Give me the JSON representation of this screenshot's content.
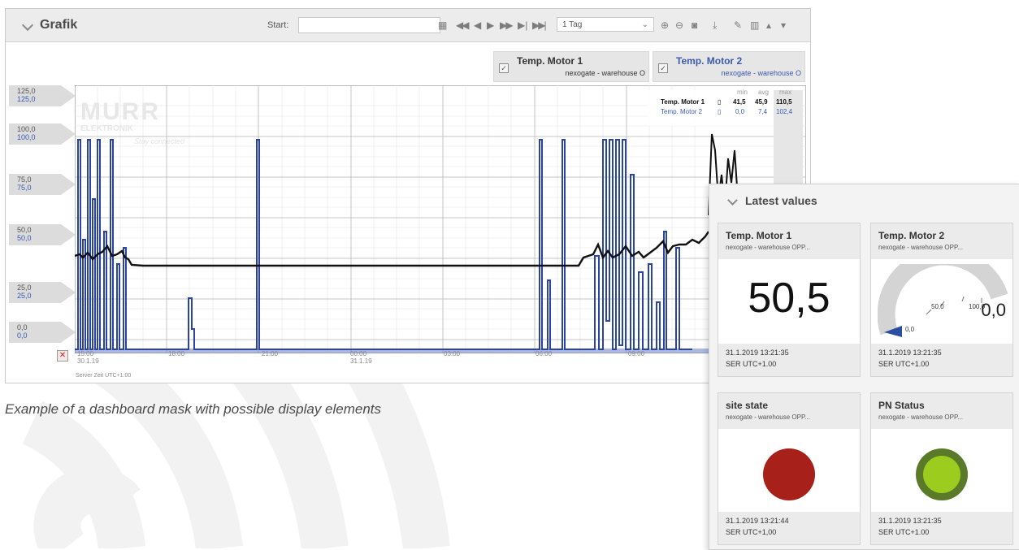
{
  "grafik": {
    "title": "Grafik",
    "start_label": "Start:",
    "start_value": "",
    "range_value": "1 Tag",
    "toolbar_icons": [
      "calendar-icon",
      "skip-back-icon",
      "step-back-icon",
      "play-icon",
      "fast-forward-icon",
      "step-forward-icon",
      "skip-forward-icon",
      "zoom-in-icon",
      "zoom-out-icon",
      "camera-icon",
      "download-icon",
      "pencil-icon",
      "trash-icon",
      "collapse-icon",
      "expand-icon"
    ],
    "series_toggles": [
      {
        "name": "Temp. Motor 1",
        "source": "nexogate - warehouse O",
        "color": "#111111"
      },
      {
        "name": "Temp. Motor 2",
        "source": "nexogate - warehouse O",
        "color": "#3b5ab0"
      }
    ],
    "y_labels": [
      {
        "a": "125,0",
        "b": "125,0"
      },
      {
        "a": "100,0",
        "b": "100,0"
      },
      {
        "a": "75,0",
        "b": "75,0"
      },
      {
        "a": "50,0",
        "b": "50,0"
      },
      {
        "a": "25,0",
        "b": "25,0"
      },
      {
        "a": "0,0",
        "b": "0,0"
      }
    ],
    "x_labels": [
      {
        "t": "15:00",
        "d": "30.1.19"
      },
      {
        "t": "18:00",
        "d": ""
      },
      {
        "t": "21:00",
        "d": ""
      },
      {
        "t": "00:00",
        "d": "31.1.19"
      },
      {
        "t": "03:00",
        "d": ""
      },
      {
        "t": "06:00",
        "d": ""
      },
      {
        "t": "09:00",
        "d": ""
      }
    ],
    "server_time": "Server Zeit UTC+1:00",
    "stats": {
      "headers": [
        "min",
        "avg",
        "max"
      ],
      "rows": [
        {
          "name": "Temp. Motor 1",
          "min": "41,5",
          "avg": "45,9",
          "max": "110,5",
          "color": "#111111"
        },
        {
          "name": "Temp. Motor 2",
          "min": "0,0",
          "avg": "7,4",
          "max": "102,4",
          "color": "#3b5ab0"
        }
      ]
    },
    "watermark": {
      "brand": "MURR",
      "sub": "ELEKTRONIK",
      "tagline": "Stay connected"
    }
  },
  "caption": "Example of a dashboard mask with possible display elements",
  "latest": {
    "title": "Latest values",
    "cards": [
      {
        "title": "Temp. Motor 1",
        "source": "nexogate - warehouse OPP...",
        "value": "50,5",
        "timestamp": "31.1.2019 13:21:35",
        "tz": "SER UTC+1.00"
      },
      {
        "title": "Temp. Motor 2",
        "source": "nexogate - warehouse OPP...",
        "value": "0,0",
        "gauge_min": "0,0",
        "gauge_mid": "50,0",
        "gauge_max": "100,0",
        "timestamp": "31.1.2019 13:21:35",
        "tz": "SER UTC+1.00"
      },
      {
        "title": "site state",
        "source": "nexogate - warehouse OPP...",
        "status_color": "#a8201a",
        "timestamp": "31.1.2019 13:21:44",
        "tz": "SER UTC+1,00"
      },
      {
        "title": "PN Status",
        "source": "nexogate - warehouse OPP...",
        "status_color": "#9ccc1e",
        "ring_color": "#5a7a2a",
        "timestamp": "31.1.2019 13:21:35",
        "tz": "SER UTC+1.00"
      }
    ]
  }
}
